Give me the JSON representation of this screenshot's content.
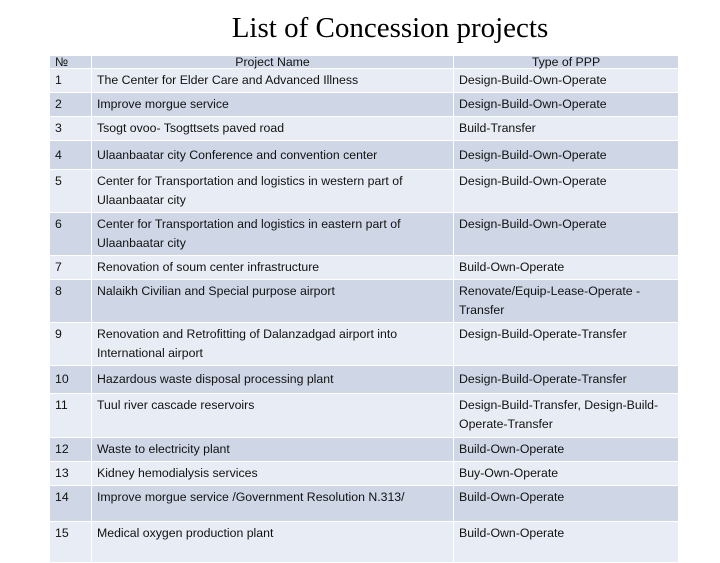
{
  "header": {
    "title": "List of Concession projects"
  },
  "table": {
    "columns": [
      "№",
      "Project Name",
      "Type of PPP"
    ],
    "rows": [
      [
        "1",
        "The Center for Elder Care and Advanced Illness",
        "Design-Build-Own-Operate"
      ],
      [
        "2",
        "Improve morgue service",
        "Design-Build-Own-Operate"
      ],
      [
        "3",
        "Tsogt ovoo- Tsogttsets paved road",
        "Build-Transfer"
      ],
      [
        "4",
        "Ulaanbaatar city Conference and convention center",
        "Design-Build-Own-Operate"
      ],
      [
        "5",
        "Center for Transportation and logistics in western part of Ulaanbaatar city",
        "Design-Build-Own-Operate"
      ],
      [
        "6",
        "Center for Transportation and logistics in eastern part of Ulaanbaatar city",
        "Design-Build-Own-Operate"
      ],
      [
        "7",
        "Renovation of soum center infrastructure",
        "Build-Own-Operate"
      ],
      [
        "8",
        "Nalaikh Civilian and Special purpose airport",
        "Renovate/Equip-Lease-Operate -Transfer"
      ],
      [
        "9",
        "Renovation and Retrofitting of Dalanzadgad airport into International airport",
        "Design-Build-Operate-Transfer"
      ],
      [
        "10",
        "Hazardous waste disposal processing plant",
        "Design-Build-Operate-Transfer"
      ],
      [
        "11",
        "Tuul river cascade reservoirs",
        "Design-Build-Transfer, Design-Build-Operate-Transfer"
      ],
      [
        "12",
        "Waste to electricity plant",
        "Build-Own-Operate"
      ],
      [
        "13",
        "Kidney hemodialysis services",
        "Buy-Own-Operate"
      ],
      [
        "14",
        "Improve morgue service /Government Resolution N.313/",
        "Build-Own-Operate"
      ],
      [
        "15",
        "Medical oxygen production plant",
        "Build-Own-Operate"
      ]
    ]
  }
}
